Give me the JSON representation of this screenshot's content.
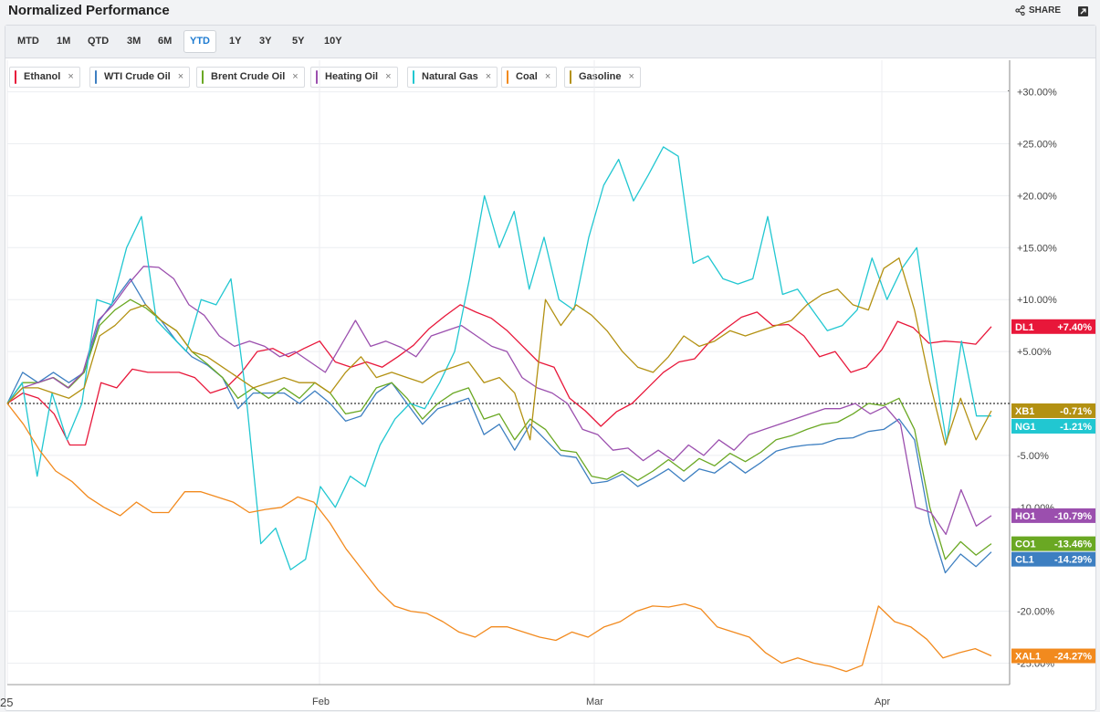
{
  "header": {
    "title": "Normalized Performance",
    "share_label": "SHARE"
  },
  "ranges": [
    {
      "label": "MTD",
      "active": false
    },
    {
      "label": "1M",
      "active": false
    },
    {
      "label": "QTD",
      "active": false
    },
    {
      "label": "3M",
      "active": false
    },
    {
      "label": "6M",
      "active": false
    },
    {
      "label": "YTD",
      "active": true
    },
    {
      "label": "1Y",
      "active": false
    },
    {
      "label": "3Y",
      "active": false
    },
    {
      "label": "5Y",
      "active": false
    },
    {
      "label": "10Y",
      "active": false
    }
  ],
  "legend": [
    {
      "label": "Ethanol",
      "color": "#e8173a"
    },
    {
      "label": "WTI Crude Oil",
      "color": "#3d7fc1"
    },
    {
      "label": "Brent Crude Oil",
      "color": "#6aa823"
    },
    {
      "label": "Heating Oil",
      "color": "#9b4fae"
    },
    {
      "label": "Natural Gas",
      "color": "#21c7d1"
    },
    {
      "label": "Coal",
      "color": "#f28a1e"
    },
    {
      "label": "Gasoline",
      "color": "#b39112"
    }
  ],
  "chart_data": {
    "type": "line",
    "ylim": [
      -25,
      30
    ],
    "y_ticks": [
      "+30.00%",
      "+25.00%",
      "+20.00%",
      "+15.00%",
      "+10.00%",
      "+5.00%",
      "-5.00%",
      "-10.00%",
      "-20.00%",
      "-25.00%"
    ],
    "x_ticks": [
      "25",
      "Feb",
      "Mar",
      "Apr"
    ],
    "grid": true,
    "baseline": 0,
    "series": [
      {
        "name": "Ethanol",
        "symbol": "DL1",
        "last_label": "+7.40%",
        "color": "#e8173a",
        "values": [
          0,
          1,
          0.5,
          -1,
          -4,
          -4,
          2,
          1.5,
          3.3,
          3,
          3,
          3,
          2.5,
          1,
          1.5,
          3,
          5,
          5.3,
          4.5,
          5.3,
          6,
          4,
          3.5,
          4,
          3.5,
          4.5,
          5.6,
          7.2,
          8.4,
          9.5,
          8.8,
          8.2,
          7,
          5.5,
          4,
          3.5,
          0.5,
          -0.7,
          -2.2,
          -0.8,
          0,
          1.5,
          3,
          4,
          4.3,
          6,
          7.2,
          8.3,
          8.8,
          7.5,
          7.6,
          6.5,
          4.5,
          5,
          3,
          3.5,
          5.2,
          7.9,
          7.3,
          5.8,
          6,
          5.9,
          5.7,
          7.4
        ]
      },
      {
        "name": "WTI Crude Oil",
        "symbol": "CL1",
        "last_label": "-14.29%",
        "color": "#3d7fc1",
        "values": [
          0,
          3,
          2,
          3,
          2,
          3,
          8,
          10,
          12,
          9.5,
          8,
          6,
          4.5,
          3.7,
          2.5,
          -0.5,
          1,
          1,
          1,
          0,
          1.2,
          0,
          -1.7,
          -1.2,
          1,
          2,
          0,
          -2,
          -0.5,
          0,
          0.5,
          -3,
          -2,
          -4.5,
          -2,
          -3.5,
          -5,
          -5.2,
          -7.7,
          -7.5,
          -6.8,
          -8,
          -7.2,
          -6.3,
          -7.5,
          -6.3,
          -6.7,
          -5.6,
          -6.7,
          -5.7,
          -4.6,
          -4.2,
          -4,
          -3.9,
          -3.4,
          -3.3,
          -2.7,
          -2.5,
          -1.5,
          -3.5,
          -11.5,
          -16.3,
          -14.5,
          -15.7,
          -14.3
        ]
      },
      {
        "name": "Brent Crude Oil",
        "symbol": "CO1",
        "last_label": "-13.46%",
        "color": "#6aa823",
        "values": [
          0,
          2,
          2,
          2.5,
          1.5,
          3,
          7.5,
          9,
          10,
          9.2,
          8,
          7,
          5,
          3.8,
          2.5,
          0.5,
          1.5,
          0.5,
          1.5,
          0.5,
          2,
          1,
          -1,
          -0.7,
          1.5,
          2,
          0.5,
          -1.5,
          0,
          1,
          1.5,
          -1.5,
          -1,
          -3.5,
          -1.5,
          -2.5,
          -4.5,
          -4.7,
          -7,
          -7.3,
          -6.5,
          -7.4,
          -6.5,
          -5.4,
          -6.5,
          -5.3,
          -6,
          -4.8,
          -5.6,
          -4.7,
          -3.5,
          -3.1,
          -2.5,
          -2,
          -1.8,
          -1,
          0,
          -0.2,
          0.5,
          -2.5,
          -10,
          -15,
          -13.3,
          -14.6,
          -13.5
        ]
      },
      {
        "name": "Heating Oil",
        "symbol": "HO1",
        "last_label": "-10.79%",
        "color": "#9b4fae",
        "values": [
          0,
          1.5,
          2,
          2.5,
          1.5,
          3,
          8,
          9.5,
          11.5,
          13.2,
          13.1,
          12,
          9.5,
          8.5,
          6.5,
          5.5,
          6,
          5.5,
          4.5,
          5,
          4,
          3,
          5.5,
          8,
          5.5,
          6,
          5.4,
          4.5,
          6.5,
          7,
          7.5,
          6.5,
          5.5,
          5,
          2.5,
          1.5,
          1,
          0,
          -2.5,
          -3,
          -4.5,
          -4.3,
          -5.5,
          -4.5,
          -5.5,
          -4,
          -5,
          -3.5,
          -4.5,
          -3,
          -2.5,
          -2,
          -1.5,
          -1,
          -0.5,
          -0.5,
          0,
          -1,
          -0.3,
          -2,
          -10,
          -10.5,
          -12.6,
          -8.3,
          -11.8,
          -10.8
        ]
      },
      {
        "name": "Natural Gas",
        "symbol": "NG1",
        "last_label": "-1.21%",
        "color": "#21c7d1",
        "values": [
          0,
          2,
          -7,
          1,
          -3.5,
          0,
          10,
          9.5,
          15,
          18,
          8,
          6.5,
          5,
          10,
          9.5,
          12,
          1,
          -13.5,
          -12,
          -16,
          -15,
          -8,
          -10,
          -7,
          -8,
          -4,
          -1.5,
          0,
          -0.5,
          2,
          5,
          12,
          20,
          15,
          18.5,
          11,
          16,
          10,
          9,
          16,
          21,
          23.5,
          19.5,
          22,
          24.7,
          23.8,
          13.5,
          14.2,
          12,
          11.5,
          12,
          18,
          10.5,
          11,
          9,
          7,
          7.5,
          9,
          14,
          10,
          13,
          15,
          5,
          -3.8,
          6,
          -1.2,
          -1.2
        ]
      },
      {
        "name": "Coal",
        "symbol": "XAL1",
        "last_label": "-24.27%",
        "color": "#f28a1e",
        "values": [
          0,
          -2,
          -4.5,
          -6.5,
          -7.5,
          -9,
          -10,
          -10.8,
          -9.5,
          -10.5,
          -10.5,
          -8.5,
          -8.5,
          -9,
          -9.5,
          -10.5,
          -10.2,
          -10,
          -9,
          -9.5,
          -11.5,
          -14,
          -16,
          -18,
          -19.5,
          -20,
          -20.2,
          -21,
          -22,
          -22.5,
          -21.5,
          -21.5,
          -22,
          -22.5,
          -22.8,
          -22,
          -22.5,
          -21.5,
          -21,
          -20,
          -19.5,
          -19.6,
          -19.3,
          -19.8,
          -21.5,
          -22,
          -22.5,
          -24,
          -25,
          -24.5,
          -25,
          -25.3,
          -25.8,
          -25.2,
          -19.5,
          -21,
          -21.5,
          -22.7,
          -24.5,
          -24,
          -23.6,
          -24.3
        ]
      },
      {
        "name": "Gasoline",
        "symbol": "XB1",
        "last_label": "-0.71%",
        "color": "#b39112",
        "values": [
          0,
          1.5,
          1.5,
          1,
          0.5,
          1.5,
          6.5,
          7.5,
          9,
          9.5,
          8,
          7,
          5,
          4.5,
          3.5,
          2.5,
          1.5,
          2,
          2.5,
          2,
          2,
          1,
          3,
          4.5,
          2.5,
          3,
          2.5,
          2,
          3,
          3.5,
          4,
          2,
          2.5,
          1,
          -3.5,
          10,
          7.5,
          9.5,
          8.5,
          7,
          5,
          3.5,
          3,
          4.5,
          6.5,
          5.5,
          6,
          7,
          6.5,
          7,
          7.5,
          8,
          9.5,
          10.5,
          11,
          9.5,
          9,
          13,
          14,
          9,
          2,
          -4,
          0.5,
          -3.5,
          -0.7
        ]
      }
    ]
  }
}
